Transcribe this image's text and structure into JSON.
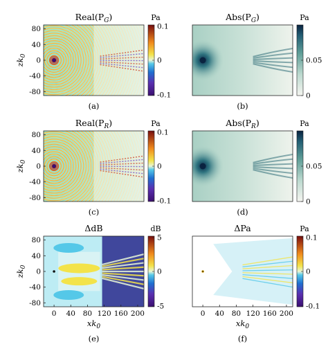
{
  "figure": {
    "panels": [
      {
        "id": "a",
        "title": "Real(P_G)",
        "label": "(a)",
        "unit": "Pa",
        "cbar": "diverging",
        "cb_ticks": [
          "0.1",
          "0",
          "-0.1"
        ],
        "kind": "real",
        "show_x": false
      },
      {
        "id": "b",
        "title": "Abs(P_G)",
        "label": "(b)",
        "unit": "Pa",
        "cbar": "teal",
        "cb_ticks": [
          "0.05",
          "0"
        ],
        "kind": "abs",
        "show_x": false
      },
      {
        "id": "c",
        "title": "Real(P_R)",
        "label": "(c)",
        "unit": "Pa",
        "cbar": "diverging",
        "cb_ticks": [
          "0.1",
          "0",
          "-0.1"
        ],
        "kind": "real",
        "show_x": false
      },
      {
        "id": "d",
        "title": "Abs(P_R)",
        "label": "(d)",
        "unit": "Pa",
        "cbar": "teal",
        "cb_ticks": [
          "0.05",
          "0"
        ],
        "kind": "abs",
        "show_x": false
      },
      {
        "id": "e",
        "title": "ΔdB",
        "label": "(e)",
        "unit": "dB",
        "cbar": "diverging",
        "cb_ticks": [
          "5",
          "0",
          "-5"
        ],
        "kind": "ddb",
        "show_x": true
      },
      {
        "id": "f",
        "title": "ΔPa",
        "label": "(f)",
        "unit": "Pa",
        "cbar": "diverging",
        "cb_ticks": [
          "0.1",
          "0",
          "-0.1"
        ],
        "kind": "dpa",
        "show_x": true
      }
    ],
    "y_ticks": [
      "80",
      "40",
      "0",
      "-40",
      "-80"
    ],
    "x_ticks": [
      "0",
      "40",
      "80",
      "120",
      "160",
      "200"
    ],
    "y_label": "zk0",
    "x_label": "xk0",
    "colors": {
      "diverging": [
        "#3b0f70",
        "#1f6fd1",
        "#55c8e8",
        "#e8f6d6",
        "#f3e34a",
        "#f08a1c",
        "#b21a1a"
      ],
      "teal": [
        "#f5f5f0",
        "#bcd9cf",
        "#6aa89f",
        "#2a6e7c",
        "#0a2a4a"
      ]
    }
  }
}
